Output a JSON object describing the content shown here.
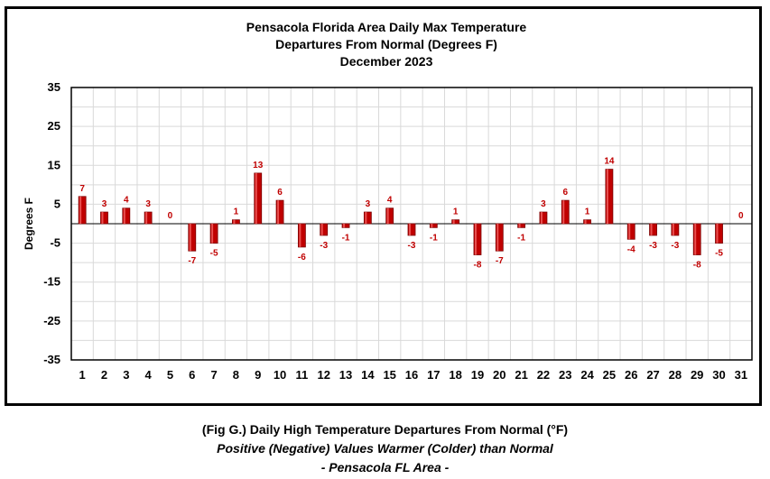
{
  "chart_data": {
    "type": "bar",
    "title_lines": [
      "Pensacola Florida Area Daily Max Temperature",
      "Departures From Normal (Degrees F)",
      "December 2023"
    ],
    "ylabel": "Degrees F",
    "xlabel": "",
    "ylim": [
      -35,
      35
    ],
    "yticks": [
      35,
      25,
      15,
      5,
      -5,
      -15,
      -25,
      -35
    ],
    "grid": true,
    "legend": "none",
    "categories": [
      "1",
      "2",
      "3",
      "4",
      "5",
      "6",
      "7",
      "8",
      "9",
      "10",
      "11",
      "12",
      "13",
      "14",
      "15",
      "16",
      "17",
      "18",
      "19",
      "20",
      "21",
      "22",
      "23",
      "24",
      "25",
      "26",
      "27",
      "28",
      "29",
      "30",
      "31"
    ],
    "values": [
      7,
      3,
      4,
      3,
      0,
      -7,
      -5,
      1,
      13,
      6,
      -6,
      -3,
      -1,
      3,
      4,
      -3,
      -1,
      1,
      -8,
      -7,
      -1,
      3,
      6,
      1,
      14,
      -4,
      -3,
      -3,
      -8,
      -5,
      0
    ],
    "bar_color": "#c00000",
    "bar_dark": "#7a0000",
    "label_color": "#c00000"
  },
  "caption": {
    "line1": "(Fig G.) Daily High Temperature Departures From Normal (°F)",
    "line2": "Positive (Negative) Values Warmer (Colder) than Normal",
    "line3": "- Pensacola FL Area -"
  }
}
